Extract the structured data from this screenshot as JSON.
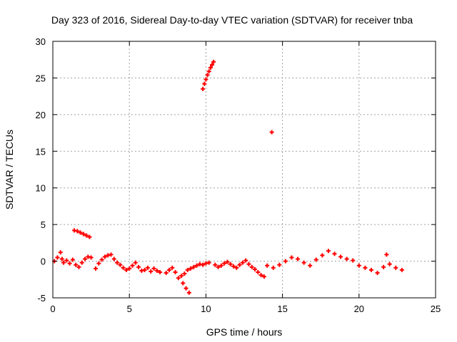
{
  "chart_data": {
    "type": "scatter",
    "title": "Day 323 of 2016, Sidereal Day-to-day VTEC variation (SDTVAR) for receiver tnba",
    "xlabel": "GPS time / hours",
    "ylabel": "SDTVAR / TECUs",
    "xlim": [
      0,
      25
    ],
    "ylim": [
      -5,
      30
    ],
    "x_ticks": [
      0,
      5,
      10,
      15,
      20,
      25
    ],
    "y_ticks": [
      -5,
      0,
      5,
      10,
      15,
      20,
      25,
      30
    ],
    "grid": true,
    "marker": "+",
    "series_color": "#ff0000",
    "series": [
      {
        "name": "SDTVAR",
        "x": [
          0.1,
          0.3,
          0.5,
          0.6,
          0.7,
          0.9,
          1.1,
          1.3,
          1.5,
          1.7,
          1.9,
          2.1,
          2.3,
          2.5,
          1.4,
          1.6,
          1.8,
          2.0,
          2.2,
          2.4,
          2.8,
          3.0,
          3.2,
          3.4,
          3.6,
          3.8,
          4.0,
          4.2,
          4.4,
          4.6,
          4.8,
          5.0,
          5.2,
          5.4,
          5.6,
          5.8,
          6.0,
          6.2,
          6.4,
          6.6,
          6.8,
          7.0,
          7.4,
          7.6,
          7.8,
          8.0,
          8.2,
          8.4,
          8.6,
          8.8,
          9.0,
          9.2,
          9.4,
          9.6,
          9.8,
          10.0,
          10.2,
          8.5,
          8.7,
          8.9,
          9.8,
          9.9,
          10.0,
          10.1,
          10.2,
          10.3,
          10.4,
          10.5,
          10.6,
          10.8,
          11.0,
          11.2,
          11.4,
          11.6,
          11.8,
          12.0,
          12.2,
          12.4,
          12.6,
          12.8,
          13.0,
          13.2,
          13.4,
          13.6,
          13.8,
          14.3,
          14.0,
          14.4,
          14.8,
          15.2,
          15.6,
          16.0,
          16.4,
          16.8,
          17.2,
          17.6,
          18.0,
          18.4,
          18.8,
          19.2,
          19.6,
          20.0,
          20.4,
          20.8,
          21.2,
          21.6,
          22.0,
          22.4,
          22.8,
          21.8
        ],
        "y": [
          0.0,
          0.5,
          1.2,
          0.3,
          -0.2,
          0.1,
          -0.3,
          0.2,
          -0.5,
          -0.8,
          -0.2,
          0.3,
          0.6,
          0.5,
          4.2,
          4.1,
          3.9,
          3.7,
          3.5,
          3.3,
          -1.0,
          -0.3,
          0.2,
          0.6,
          0.8,
          0.9,
          0.3,
          -0.2,
          -0.5,
          -0.9,
          -1.2,
          -1.0,
          -0.6,
          -0.2,
          -0.8,
          -1.3,
          -1.2,
          -0.9,
          -1.4,
          -1.0,
          -1.3,
          -1.5,
          -1.6,
          -1.2,
          -0.9,
          -1.5,
          -2.3,
          -2.0,
          -1.7,
          -1.2,
          -1.0,
          -0.8,
          -0.6,
          -0.4,
          -0.5,
          -0.3,
          -0.2,
          -3.0,
          -3.7,
          -4.3,
          23.5,
          24.2,
          24.8,
          25.4,
          25.9,
          26.4,
          26.8,
          27.2,
          -0.5,
          -0.8,
          -0.6,
          -0.3,
          -0.1,
          -0.4,
          -0.7,
          -0.9,
          -0.5,
          -0.2,
          0.1,
          -0.4,
          -0.8,
          -1.1,
          -1.5,
          -1.9,
          -2.1,
          17.6,
          -0.6,
          -0.9,
          -0.5,
          0.0,
          0.5,
          0.3,
          -0.2,
          -0.6,
          0.2,
          0.8,
          1.4,
          1.0,
          0.6,
          0.3,
          0.1,
          -0.6,
          -0.9,
          -1.2,
          -1.6,
          -0.8,
          -0.4,
          -0.9,
          -1.2,
          0.9
        ]
      }
    ]
  }
}
